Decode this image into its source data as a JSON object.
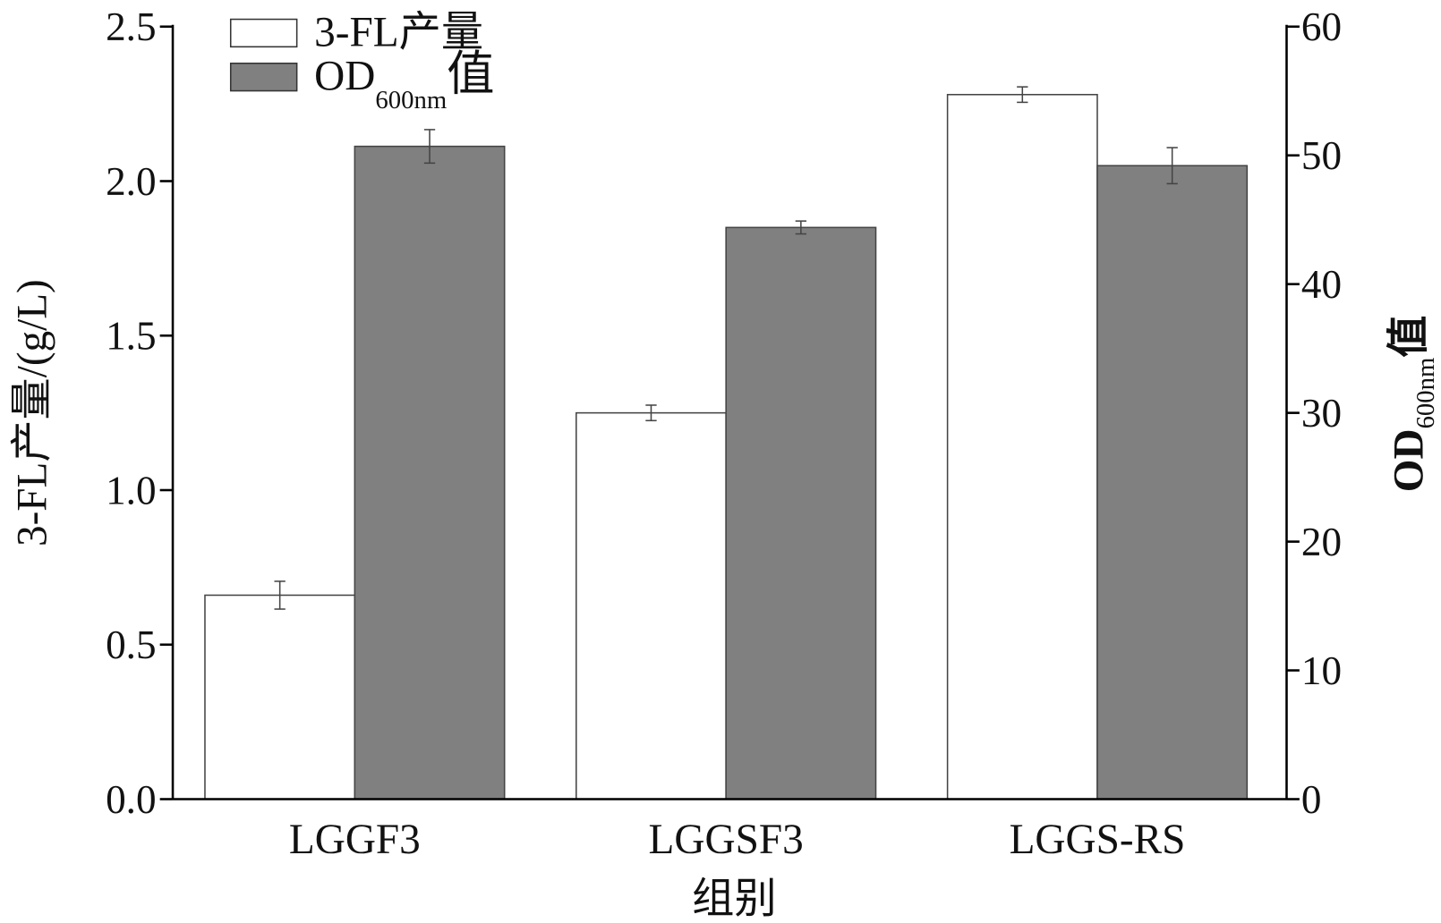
{
  "chart_data": {
    "type": "bar",
    "title": "",
    "xlabel": "组别",
    "ylabel": "3-FL产量/(g/L)",
    "ylabel_right": {
      "main": "OD",
      "sub": "600nm",
      "suffix": "值"
    },
    "categories": [
      "LGGF3",
      "LGGSF3",
      "LGGS-RS"
    ],
    "series": [
      {
        "name": "3-FL产量",
        "axis": "left",
        "color": "#ffffff",
        "values": [
          0.66,
          1.25,
          2.28
        ],
        "errors": [
          0.045,
          0.025,
          0.025
        ]
      },
      {
        "name": "OD600nm值",
        "axis": "right",
        "color": "#808080",
        "values": [
          50.7,
          44.4,
          49.2
        ],
        "errors": [
          1.3,
          0.5,
          1.4
        ]
      }
    ],
    "legend": {
      "items": [
        {
          "label": "3-FL产量"
        },
        {
          "label_main": "OD",
          "label_sub": "600nm",
          "label_suffix": "值"
        }
      ],
      "position": "top-left"
    },
    "ylim": [
      0,
      2.5
    ],
    "yticks": [
      "0.0",
      "0.5",
      "1.0",
      "1.5",
      "2.0",
      "2.5"
    ],
    "ylim_right": [
      0,
      60
    ],
    "yticks_right": [
      "0",
      "10",
      "20",
      "30",
      "40",
      "50",
      "60"
    ],
    "grid": false
  }
}
